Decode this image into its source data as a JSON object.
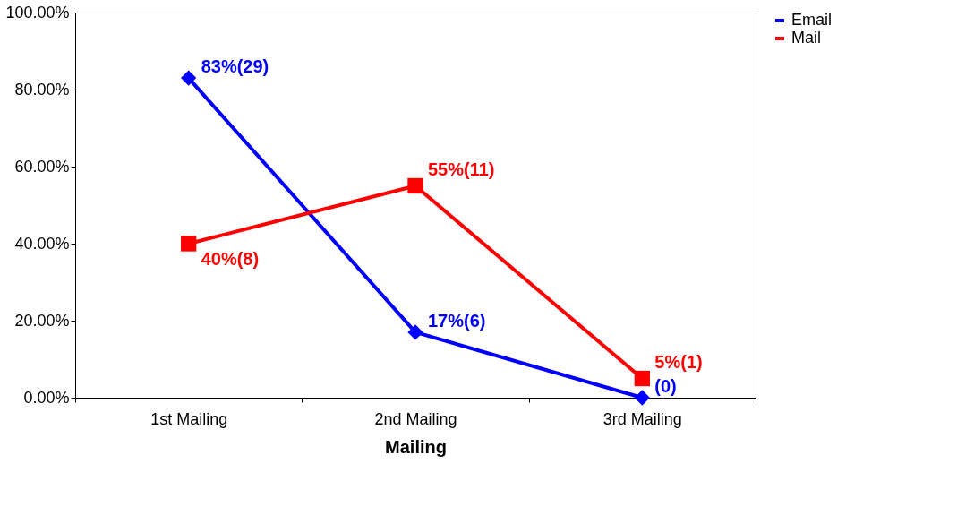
{
  "chart_data": {
    "type": "line",
    "xlabel": "Mailing",
    "categories": [
      "1st Mailing",
      "2nd Mailing",
      "3rd Mailing"
    ],
    "series": [
      {
        "name": "Email",
        "color": "#0000ff",
        "marker": "diamond",
        "values": [
          83,
          17,
          0
        ],
        "value_labels": [
          "83%(29)",
          "17%(6)",
          "(0)"
        ]
      },
      {
        "name": "Mail",
        "color": "#ff0000",
        "marker": "square",
        "values": [
          40,
          55,
          5
        ],
        "value_labels": [
          "40%(8)",
          "55%(11)",
          "5%(1)"
        ]
      }
    ],
    "ylim": [
      0,
      100
    ],
    "yticks": [
      {
        "value": 0,
        "label": "0.00%"
      },
      {
        "value": 20,
        "label": "20.00%"
      },
      {
        "value": 40,
        "label": "40.00%"
      },
      {
        "value": 60,
        "label": "60.00%"
      },
      {
        "value": 80,
        "label": "80.00%"
      },
      {
        "value": 100,
        "label": "100.00%"
      }
    ],
    "grid": false,
    "legend": "right",
    "line_style": "solid"
  }
}
